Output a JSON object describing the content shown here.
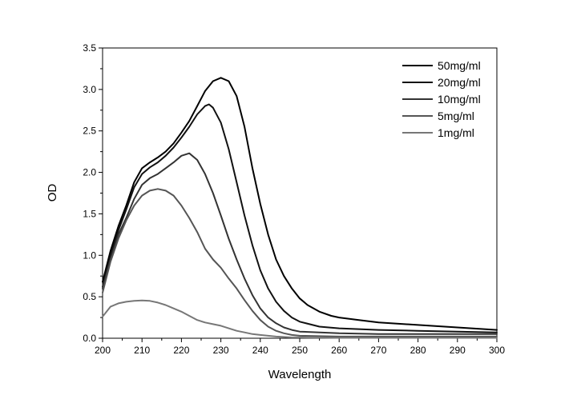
{
  "chart_data": {
    "type": "line",
    "title": "",
    "xlabel": "Wavelength",
    "ylabel": "OD",
    "xlim": [
      200,
      300
    ],
    "ylim": [
      0,
      3.5
    ],
    "x_ticks": [
      "200",
      "210",
      "220",
      "230",
      "240",
      "250",
      "260",
      "270",
      "280",
      "290",
      "300"
    ],
    "y_ticks": [
      "0.0",
      "0.5",
      "1.0",
      "1.5",
      "2.0",
      "2.5",
      "3.0",
      "3.5"
    ],
    "grid": false,
    "legend_position": "top-right",
    "series": [
      {
        "name": "50mg/ml",
        "color": "#000000",
        "points": [
          [
            200,
            0.68
          ],
          [
            202,
            1.05
          ],
          [
            204,
            1.35
          ],
          [
            206,
            1.6
          ],
          [
            208,
            1.88
          ],
          [
            210,
            2.05
          ],
          [
            212,
            2.12
          ],
          [
            214,
            2.18
          ],
          [
            216,
            2.25
          ],
          [
            218,
            2.35
          ],
          [
            220,
            2.48
          ],
          [
            222,
            2.62
          ],
          [
            224,
            2.8
          ],
          [
            226,
            2.98
          ],
          [
            228,
            3.1
          ],
          [
            230,
            3.14
          ],
          [
            232,
            3.1
          ],
          [
            234,
            2.92
          ],
          [
            236,
            2.55
          ],
          [
            238,
            2.05
          ],
          [
            240,
            1.62
          ],
          [
            242,
            1.25
          ],
          [
            244,
            0.95
          ],
          [
            246,
            0.75
          ],
          [
            248,
            0.6
          ],
          [
            250,
            0.48
          ],
          [
            252,
            0.4
          ],
          [
            255,
            0.32
          ],
          [
            258,
            0.27
          ],
          [
            260,
            0.25
          ],
          [
            265,
            0.22
          ],
          [
            270,
            0.19
          ],
          [
            280,
            0.16
          ],
          [
            290,
            0.13
          ],
          [
            300,
            0.1
          ]
        ]
      },
      {
        "name": "20mg/ml",
        "color": "#111111",
        "points": [
          [
            200,
            0.62
          ],
          [
            202,
            1.0
          ],
          [
            204,
            1.3
          ],
          [
            206,
            1.55
          ],
          [
            208,
            1.82
          ],
          [
            210,
            1.98
          ],
          [
            212,
            2.06
          ],
          [
            214,
            2.12
          ],
          [
            216,
            2.2
          ],
          [
            218,
            2.3
          ],
          [
            220,
            2.42
          ],
          [
            222,
            2.55
          ],
          [
            224,
            2.7
          ],
          [
            226,
            2.8
          ],
          [
            227,
            2.82
          ],
          [
            228,
            2.78
          ],
          [
            230,
            2.6
          ],
          [
            232,
            2.28
          ],
          [
            234,
            1.88
          ],
          [
            236,
            1.48
          ],
          [
            238,
            1.12
          ],
          [
            240,
            0.82
          ],
          [
            242,
            0.6
          ],
          [
            244,
            0.44
          ],
          [
            246,
            0.33
          ],
          [
            248,
            0.25
          ],
          [
            250,
            0.2
          ],
          [
            255,
            0.14
          ],
          [
            260,
            0.12
          ],
          [
            270,
            0.1
          ],
          [
            280,
            0.09
          ],
          [
            290,
            0.08
          ],
          [
            300,
            0.07
          ]
        ]
      },
      {
        "name": "10mg/ml",
        "color": "#333333",
        "points": [
          [
            200,
            0.6
          ],
          [
            202,
            0.95
          ],
          [
            204,
            1.25
          ],
          [
            206,
            1.45
          ],
          [
            208,
            1.68
          ],
          [
            210,
            1.85
          ],
          [
            212,
            1.93
          ],
          [
            214,
            1.98
          ],
          [
            216,
            2.05
          ],
          [
            218,
            2.12
          ],
          [
            220,
            2.2
          ],
          [
            222,
            2.23
          ],
          [
            224,
            2.15
          ],
          [
            226,
            1.98
          ],
          [
            228,
            1.75
          ],
          [
            230,
            1.48
          ],
          [
            232,
            1.2
          ],
          [
            234,
            0.95
          ],
          [
            236,
            0.72
          ],
          [
            238,
            0.52
          ],
          [
            240,
            0.36
          ],
          [
            242,
            0.25
          ],
          [
            244,
            0.18
          ],
          [
            246,
            0.13
          ],
          [
            248,
            0.1
          ],
          [
            250,
            0.08
          ],
          [
            260,
            0.06
          ],
          [
            270,
            0.05
          ],
          [
            280,
            0.05
          ],
          [
            290,
            0.05
          ],
          [
            300,
            0.05
          ]
        ]
      },
      {
        "name": "5mg/ml",
        "color": "#555555",
        "points": [
          [
            200,
            0.55
          ],
          [
            202,
            0.92
          ],
          [
            204,
            1.2
          ],
          [
            206,
            1.42
          ],
          [
            208,
            1.6
          ],
          [
            210,
            1.72
          ],
          [
            212,
            1.78
          ],
          [
            214,
            1.8
          ],
          [
            216,
            1.78
          ],
          [
            218,
            1.72
          ],
          [
            220,
            1.6
          ],
          [
            222,
            1.45
          ],
          [
            224,
            1.28
          ],
          [
            226,
            1.08
          ],
          [
            228,
            0.95
          ],
          [
            230,
            0.85
          ],
          [
            232,
            0.72
          ],
          [
            234,
            0.6
          ],
          [
            236,
            0.46
          ],
          [
            238,
            0.33
          ],
          [
            240,
            0.22
          ],
          [
            242,
            0.14
          ],
          [
            244,
            0.09
          ],
          [
            246,
            0.06
          ],
          [
            248,
            0.04
          ],
          [
            250,
            0.03
          ],
          [
            260,
            0.02
          ],
          [
            270,
            0.02
          ],
          [
            280,
            0.02
          ],
          [
            290,
            0.02
          ],
          [
            300,
            0.02
          ]
        ]
      },
      {
        "name": "1mg/ml",
        "color": "#777777",
        "points": [
          [
            200,
            0.26
          ],
          [
            202,
            0.38
          ],
          [
            204,
            0.42
          ],
          [
            206,
            0.44
          ],
          [
            208,
            0.45
          ],
          [
            210,
            0.455
          ],
          [
            212,
            0.45
          ],
          [
            214,
            0.43
          ],
          [
            216,
            0.4
          ],
          [
            218,
            0.36
          ],
          [
            220,
            0.32
          ],
          [
            222,
            0.27
          ],
          [
            224,
            0.22
          ],
          [
            226,
            0.19
          ],
          [
            228,
            0.17
          ],
          [
            230,
            0.15
          ],
          [
            232,
            0.12
          ],
          [
            234,
            0.09
          ],
          [
            236,
            0.07
          ],
          [
            238,
            0.05
          ],
          [
            240,
            0.04
          ],
          [
            242,
            0.03
          ],
          [
            244,
            0.02
          ],
          [
            246,
            0.015
          ],
          [
            248,
            0.01
          ],
          [
            250,
            0.01
          ],
          [
            260,
            0.005
          ],
          [
            270,
            0.005
          ],
          [
            280,
            0.005
          ],
          [
            290,
            0.005
          ],
          [
            300,
            0.005
          ]
        ]
      }
    ]
  }
}
